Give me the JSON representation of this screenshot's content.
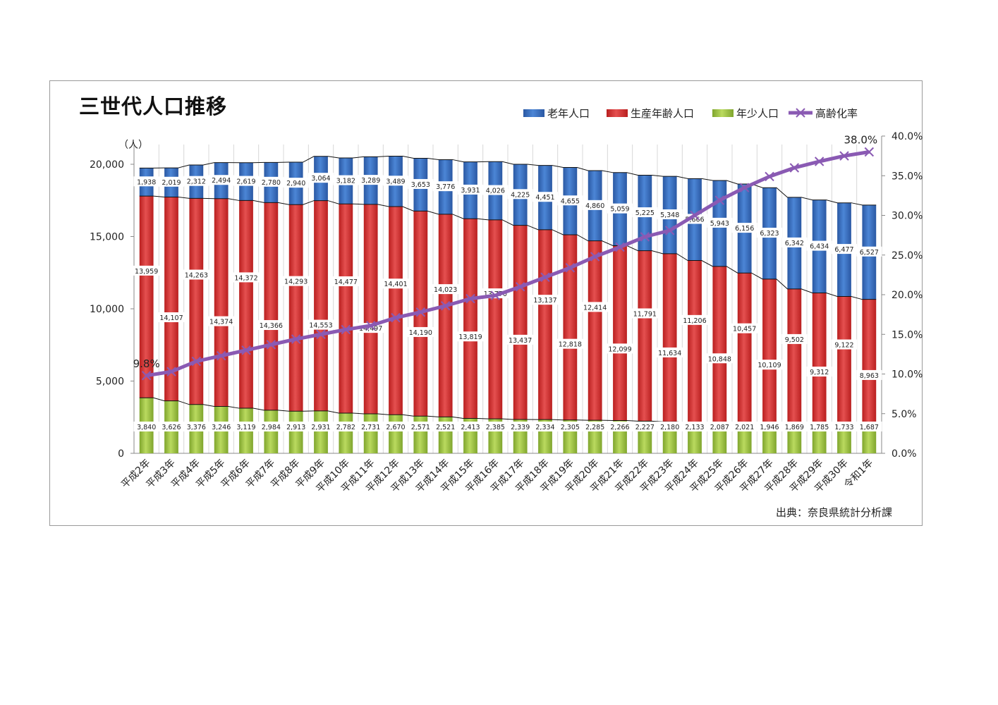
{
  "title": "三世代人口推移",
  "source": "出典：奈良県統計分析課",
  "colors": {
    "elderly": "#2f63b3",
    "working": "#d12a2a",
    "youth": "#9bc23c",
    "rate": "#8a5ab3"
  },
  "chart_data": {
    "type": "bar",
    "stacked": true,
    "y_unit": "（人）",
    "ylim": [
      0,
      20000
    ],
    "yticks": [
      "0",
      "5,000",
      "10,000",
      "15,000",
      "20,000"
    ],
    "y2lim": [
      0,
      40
    ],
    "y2ticks": [
      "0.0%",
      "5.0%",
      "10.0%",
      "15.0%",
      "20.0%",
      "25.0%",
      "30.0%",
      "35.0%",
      "40.0%"
    ],
    "legend_position": "top-right",
    "categories": [
      "平成2年",
      "平成3年",
      "平成4年",
      "平成5年",
      "平成6年",
      "平成7年",
      "平成8年",
      "平成9年",
      "平成10年",
      "平成11年",
      "平成12年",
      "平成13年",
      "平成14年",
      "平成15年",
      "平成16年",
      "平成17年",
      "平成18年",
      "平成19年",
      "平成20年",
      "平成21年",
      "平成22年",
      "平成23年",
      "平成24年",
      "平成25年",
      "平成26年",
      "平成27年",
      "平成28年",
      "平成29年",
      "平成30年",
      "令和1年"
    ],
    "series": [
      {
        "name": "老年人口",
        "key": "elderly",
        "values": [
          1938,
          2019,
          2312,
          2494,
          2619,
          2780,
          2940,
          3064,
          3182,
          3289,
          3489,
          3653,
          3776,
          3931,
          4026,
          4225,
          4451,
          4655,
          4860,
          5059,
          5225,
          5348,
          5666,
          5943,
          6156,
          6323,
          6342,
          6434,
          6477,
          6527
        ],
        "labels": [
          "1,938",
          "2,019",
          "2,312",
          "2,494",
          "2,619",
          "2,780",
          "2,940",
          "3,064",
          "3,182",
          "3,289",
          "3,489",
          "3,653",
          "3,776",
          "3,931",
          "4,026",
          "4,225",
          "4,451",
          "4,655",
          "4,860",
          "5,059",
          "5,225",
          "5,348",
          "5,666",
          "5,943",
          "6,156",
          "6,323",
          "6,342",
          "6,434",
          "6,477",
          "6,527"
        ]
      },
      {
        "name": "生産年齢人口",
        "key": "working",
        "values": [
          13959,
          14107,
          14263,
          14374,
          14372,
          14366,
          14293,
          14553,
          14477,
          14497,
          14401,
          14190,
          14023,
          13819,
          13770,
          13437,
          13137,
          12818,
          12414,
          12099,
          11791,
          11634,
          11206,
          10848,
          10457,
          10109,
          9502,
          9312,
          9122,
          8963
        ],
        "labels": [
          "13,959",
          "14,107",
          "14,263",
          "14,374",
          "14,372",
          "14,366",
          "14,293",
          "14,553",
          "14,477",
          "14,497",
          "14,401",
          "14,190",
          "14,023",
          "13,819",
          "13,770",
          "13,437",
          "13,137",
          "12,818",
          "12,414",
          "12,099",
          "11,791",
          "11,634",
          "11,206",
          "10,848",
          "10,457",
          "10,109",
          "9,502",
          "9,312",
          "9,122",
          "8,963"
        ]
      },
      {
        "name": "年少人口",
        "key": "youth",
        "values": [
          3840,
          3626,
          3376,
          3246,
          3119,
          2984,
          2913,
          2931,
          2782,
          2731,
          2670,
          2571,
          2521,
          2413,
          2385,
          2339,
          2334,
          2305,
          2285,
          2266,
          2227,
          2180,
          2133,
          2087,
          2021,
          1946,
          1869,
          1785,
          1733,
          1687
        ],
        "labels": [
          "3,840",
          "3,626",
          "3,376",
          "3,246",
          "3,119",
          "2,984",
          "2,913",
          "2,931",
          "2,782",
          "2,731",
          "2,670",
          "2,571",
          "2,521",
          "2,413",
          "2,385",
          "2,339",
          "2,334",
          "2,305",
          "2,285",
          "2,266",
          "2,227",
          "2,180",
          "2,133",
          "2,087",
          "2,021",
          "1,946",
          "1,869",
          "1,785",
          "1,733",
          "1,687"
        ]
      },
      {
        "name": "高齢化率",
        "key": "rate",
        "type": "line",
        "axis": "right",
        "values": [
          9.8,
          10.3,
          11.6,
          12.3,
          13.0,
          13.7,
          14.4,
          15.0,
          15.6,
          16.1,
          17.1,
          17.8,
          18.6,
          19.5,
          19.9,
          21.0,
          22.2,
          23.4,
          24.8,
          26.0,
          27.3,
          28.1,
          30.0,
          31.9,
          33.5,
          34.9,
          36.0,
          36.8,
          37.5,
          38.0
        ],
        "labels": {
          "first": "9.8%",
          "last": "38.0%"
        }
      }
    ]
  }
}
